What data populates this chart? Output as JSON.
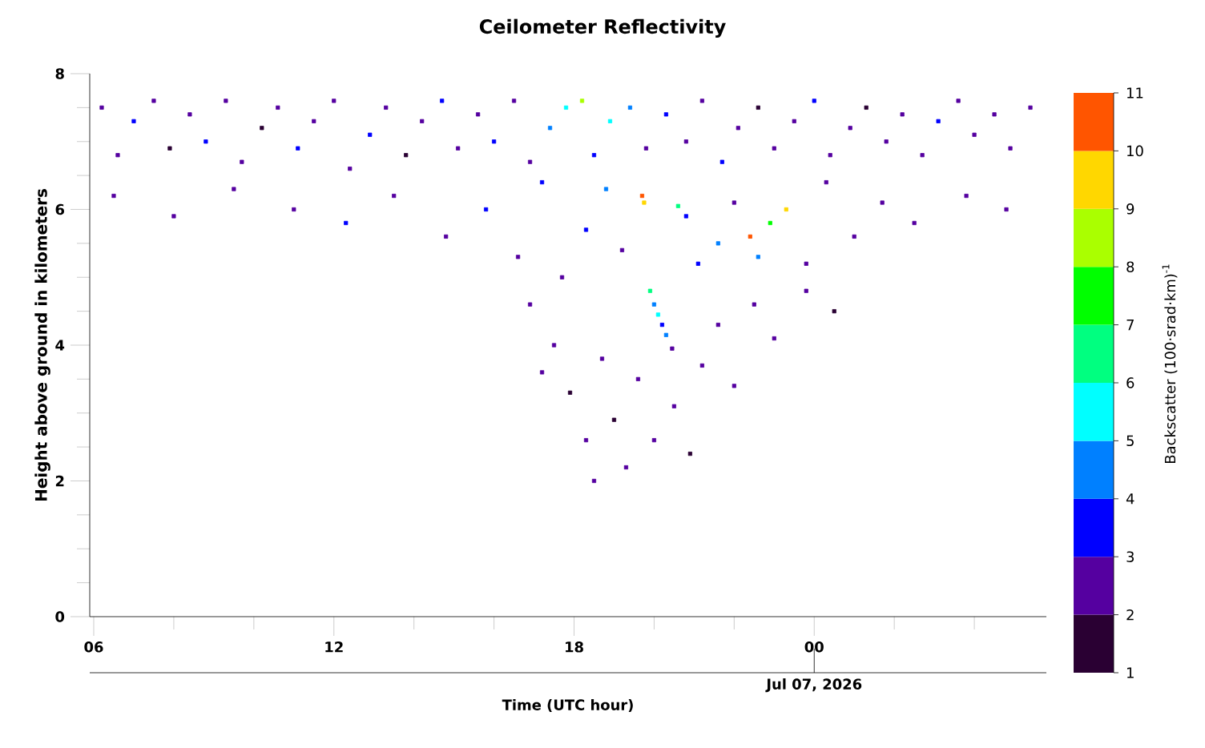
{
  "chart_data": {
    "type": "scatter",
    "title": "Ceilometer Reflectivity",
    "xlabel": "Time (UTC hour)",
    "ylabel": "Height above ground in kilometers",
    "clabel": "Backscatter (100·srad·km)$^{-1}$",
    "annotations": [
      {
        "text": "Jul 07, 2026",
        "x": "2026-07-07T00:00"
      }
    ],
    "xlim": [
      "2026-07-06T05:54",
      "2026-07-07T05:48"
    ],
    "ylim": [
      0,
      8
    ],
    "xticks": [
      {
        "value": "2026-07-06T06:00",
        "label": "06"
      },
      {
        "value": "2026-07-06T08:00",
        "label": null
      },
      {
        "value": "2026-07-06T10:00",
        "label": null
      },
      {
        "value": "2026-07-06T12:00",
        "label": "12"
      },
      {
        "value": "2026-07-06T14:00",
        "label": null
      },
      {
        "value": "2026-07-06T16:00",
        "label": null
      },
      {
        "value": "2026-07-06T18:00",
        "label": "18"
      },
      {
        "value": "2026-07-06T20:00",
        "label": null
      },
      {
        "value": "2026-07-06T22:00",
        "label": null
      },
      {
        "value": "2026-07-07T00:00",
        "label": "00"
      },
      {
        "value": "2026-07-07T02:00",
        "label": null
      },
      {
        "value": "2026-07-07T04:00",
        "label": null
      }
    ],
    "yticks": [
      0,
      {
        "value": 0.5,
        "label": null
      },
      {
        "value": 1,
        "label": null
      },
      {
        "value": 1.5,
        "label": null
      },
      2,
      {
        "value": 2.5,
        "label": null
      },
      {
        "value": 3,
        "label": null
      },
      {
        "value": 3.5,
        "label": null
      },
      4,
      {
        "value": 4.5,
        "label": null
      },
      {
        "value": 5,
        "label": null
      },
      {
        "value": 5.5,
        "label": null
      },
      6,
      {
        "value": 6.5,
        "label": null
      },
      {
        "value": 7,
        "label": null
      },
      {
        "value": 7.5,
        "label": null
      },
      8
    ],
    "clim": [
      1,
      11
    ],
    "cticks": [
      1,
      2,
      3,
      4,
      5,
      6,
      7,
      8,
      9,
      10,
      11
    ],
    "marker": "square",
    "series": [
      {
        "x": [
          "2026-07-06T06:12",
          "2026-07-06T06:36",
          "2026-07-06T07:00",
          "2026-07-06T07:30",
          "2026-07-06T07:54",
          "2026-07-06T08:24",
          "2026-07-06T08:48",
          "2026-07-06T09:18",
          "2026-07-06T09:42",
          "2026-07-06T10:12",
          "2026-07-06T10:36",
          "2026-07-06T11:06",
          "2026-07-06T11:30",
          "2026-07-06T12:00",
          "2026-07-06T12:24",
          "2026-07-06T12:54",
          "2026-07-06T13:18",
          "2026-07-06T13:48",
          "2026-07-06T14:12",
          "2026-07-06T14:42",
          "2026-07-06T15:06",
          "2026-07-06T15:36",
          "2026-07-06T16:00",
          "2026-07-06T16:30",
          "2026-07-06T16:54",
          "2026-07-06T17:24",
          "2026-07-06T17:48",
          "2026-07-06T18:12",
          "2026-07-06T18:30",
          "2026-07-06T18:54",
          "2026-07-06T19:24",
          "2026-07-06T19:48",
          "2026-07-06T20:18",
          "2026-07-06T20:48",
          "2026-07-06T21:12",
          "2026-07-06T21:42",
          "2026-07-06T22:06",
          "2026-07-06T22:36",
          "2026-07-06T23:00",
          "2026-07-06T23:30",
          "2026-07-07T00:00",
          "2026-07-07T00:24",
          "2026-07-07T00:54",
          "2026-07-07T01:18",
          "2026-07-07T01:48",
          "2026-07-07T02:12",
          "2026-07-07T02:42",
          "2026-07-07T03:06",
          "2026-07-07T03:36",
          "2026-07-07T04:00",
          "2026-07-07T04:30",
          "2026-07-07T04:54",
          "2026-07-07T05:24",
          "2026-07-06T06:30",
          "2026-07-06T08:00",
          "2026-07-06T09:30",
          "2026-07-06T11:00",
          "2026-07-06T12:18",
          "2026-07-06T13:30",
          "2026-07-06T14:48",
          "2026-07-06T15:48",
          "2026-07-06T16:36",
          "2026-07-06T17:12",
          "2026-07-06T17:42",
          "2026-07-06T18:18",
          "2026-07-06T18:48",
          "2026-07-06T19:12",
          "2026-07-06T19:42",
          "2026-07-06T19:45",
          "2026-07-06T20:36",
          "2026-07-06T20:48",
          "2026-07-06T21:06",
          "2026-07-06T21:36",
          "2026-07-06T22:00",
          "2026-07-06T22:24",
          "2026-07-06T22:36",
          "2026-07-06T22:54",
          "2026-07-06T23:18",
          "2026-07-06T23:48",
          "2026-07-07T00:18",
          "2026-07-07T01:00",
          "2026-07-07T01:42",
          "2026-07-07T02:30",
          "2026-07-07T03:48",
          "2026-07-07T04:48",
          "2026-07-06T19:54",
          "2026-07-06T20:00",
          "2026-07-06T20:06",
          "2026-07-06T20:12",
          "2026-07-06T20:18",
          "2026-07-06T20:27",
          "2026-07-06T16:54",
          "2026-07-06T17:30",
          "2026-07-06T17:54",
          "2026-07-06T18:18",
          "2026-07-06T18:42",
          "2026-07-06T19:00",
          "2026-07-06T19:18",
          "2026-07-06T19:36",
          "2026-07-06T20:00",
          "2026-07-06T20:30",
          "2026-07-06T20:54",
          "2026-07-06T21:12",
          "2026-07-06T21:36",
          "2026-07-06T22:00",
          "2026-07-06T22:30",
          "2026-07-06T23:00",
          "2026-07-06T23:48",
          "2026-07-07T00:30",
          "2026-07-06T18:30",
          "2026-07-06T17:12"
        ],
        "values": [
          7.5,
          6.8,
          7.3,
          7.6,
          6.9,
          7.4,
          7.0,
          7.6,
          6.7,
          7.2,
          7.5,
          6.9,
          7.3,
          7.6,
          6.6,
          7.1,
          7.5,
          6.8,
          7.3,
          7.6,
          6.9,
          7.4,
          7.0,
          7.6,
          6.7,
          7.2,
          7.5,
          7.6,
          6.8,
          7.3,
          7.5,
          6.9,
          7.4,
          7.0,
          7.6,
          6.7,
          7.2,
          7.5,
          6.9,
          7.3,
          7.6,
          6.8,
          7.2,
          7.5,
          7.0,
          7.4,
          6.8,
          7.3,
          7.6,
          7.1,
          7.4,
          6.9,
          7.5,
          6.2,
          5.9,
          6.3,
          6.0,
          5.8,
          6.2,
          5.6,
          6.0,
          5.3,
          6.4,
          5.0,
          5.7,
          6.3,
          5.4,
          6.2,
          6.1,
          6.05,
          5.9,
          5.2,
          5.5,
          6.1,
          5.6,
          5.3,
          5.8,
          6.0,
          5.2,
          6.4,
          5.6,
          6.1,
          5.8,
          6.2,
          6.0,
          4.8,
          4.6,
          4.45,
          4.3,
          4.15,
          3.95,
          4.6,
          4.0,
          3.3,
          2.6,
          3.8,
          2.9,
          2.2,
          3.5,
          2.6,
          3.1,
          2.4,
          3.7,
          4.3,
          3.4,
          4.6,
          4.1,
          4.8,
          4.5,
          2.0,
          3.6
        ],
        "cvalues": [
          2.5,
          2.5,
          3.5,
          2.5,
          1.5,
          2.5,
          3.5,
          2.5,
          2.5,
          1.5,
          2.5,
          3.5,
          2.5,
          2.5,
          2.5,
          3.5,
          2.5,
          1.5,
          2.5,
          3.5,
          2.5,
          2.5,
          3.5,
          2.5,
          2.5,
          4.5,
          5.5,
          8.5,
          3.5,
          5.5,
          4.5,
          2.5,
          3.5,
          2.5,
          2.5,
          3.5,
          2.5,
          1.5,
          2.5,
          2.5,
          3.5,
          2.5,
          2.5,
          1.5,
          2.5,
          2.5,
          2.5,
          3.5,
          2.5,
          2.5,
          2.5,
          2.5,
          2.5,
          2.5,
          2.5,
          2.5,
          2.5,
          3.5,
          2.5,
          2.5,
          3.5,
          2.5,
          3.5,
          2.5,
          3.5,
          4.5,
          2.5,
          10.5,
          9.5,
          6.5,
          3.5,
          3.5,
          4.5,
          2.5,
          10.5,
          4.5,
          7.5,
          9.5,
          2.5,
          2.5,
          2.5,
          2.5,
          2.5,
          2.5,
          2.5,
          6.5,
          4.5,
          5.5,
          3.5,
          4.5,
          2.5,
          2.5,
          2.5,
          1.5,
          2.5,
          2.5,
          1.5,
          2.5,
          2.5,
          2.5,
          2.5,
          1.5,
          2.5,
          2.5,
          2.5,
          2.5,
          2.5,
          2.5,
          1.5,
          2.5,
          2.5
        ]
      }
    ]
  }
}
